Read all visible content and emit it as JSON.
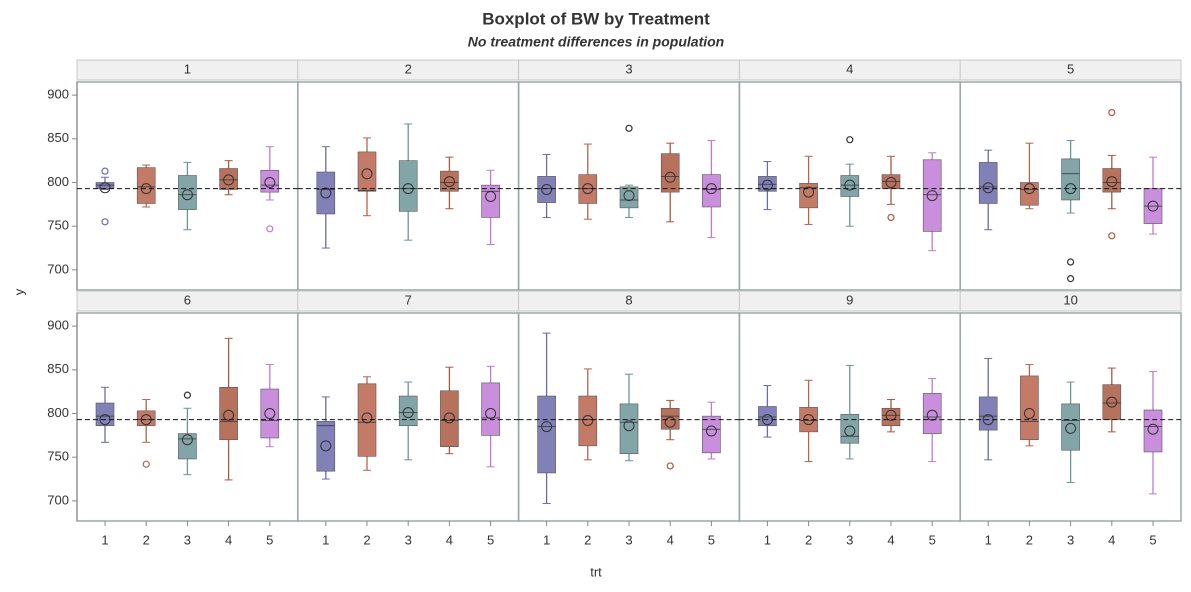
{
  "chart_data": {
    "type": "boxplot",
    "title": "Boxplot of BW by Treatment",
    "subtitle": "No treatment differences in population",
    "xlabel": "trt",
    "ylabel": "y",
    "ylim": [
      677,
      915
    ],
    "yticks": [
      700,
      750,
      800,
      850,
      900
    ],
    "reference_line": 793,
    "categories": [
      "1",
      "2",
      "3",
      "4",
      "5"
    ],
    "colors": [
      "#6b6bab",
      "#b8634c",
      "#6c9599",
      "#a9593f",
      "#c07ad6"
    ],
    "panels": [
      {
        "label": "1",
        "boxes": [
          {
            "min": 792,
            "q1": 793,
            "median": 797,
            "q3": 800,
            "max": 806,
            "mean": 794,
            "outliers": [
              813,
              755
            ]
          },
          {
            "min": 772,
            "q1": 776,
            "median": 795,
            "q3": 817,
            "max": 820,
            "mean": 793,
            "outliers": []
          },
          {
            "min": 746,
            "q1": 769,
            "median": 786,
            "q3": 808,
            "max": 823,
            "mean": 786,
            "outliers": []
          },
          {
            "min": 786,
            "q1": 792,
            "median": 803,
            "q3": 816,
            "max": 825,
            "mean": 803,
            "outliers": []
          },
          {
            "min": 780,
            "q1": 789,
            "median": 797,
            "q3": 814,
            "max": 841,
            "mean": 800,
            "outliers": [
              747
            ]
          }
        ]
      },
      {
        "label": "2",
        "boxes": [
          {
            "min": 725,
            "q1": 764,
            "median": 792,
            "q3": 812,
            "max": 841,
            "mean": 788,
            "outliers": []
          },
          {
            "min": 762,
            "q1": 790,
            "median": 791,
            "q3": 835,
            "max": 851,
            "mean": 810,
            "outliers": []
          },
          {
            "min": 734,
            "q1": 767,
            "median": 793,
            "q3": 825,
            "max": 867,
            "mean": 793,
            "outliers": []
          },
          {
            "min": 770,
            "q1": 790,
            "median": 800,
            "q3": 813,
            "max": 829,
            "mean": 801,
            "outliers": []
          },
          {
            "min": 729,
            "q1": 760,
            "median": 790,
            "q3": 797,
            "max": 814,
            "mean": 784,
            "outliers": []
          }
        ]
      },
      {
        "label": "3",
        "boxes": [
          {
            "min": 760,
            "q1": 777,
            "median": 793,
            "q3": 807,
            "max": 832,
            "mean": 792,
            "outliers": []
          },
          {
            "min": 758,
            "q1": 776,
            "median": 793,
            "q3": 809,
            "max": 844,
            "mean": 793,
            "outliers": []
          },
          {
            "min": 760,
            "q1": 771,
            "median": 780,
            "q3": 795,
            "max": 797,
            "mean": 785,
            "outliers": [
              862
            ]
          },
          {
            "min": 755,
            "q1": 789,
            "median": 807,
            "q3": 833,
            "max": 845,
            "mean": 806,
            "outliers": []
          },
          {
            "min": 737,
            "q1": 772,
            "median": 792,
            "q3": 809,
            "max": 848,
            "mean": 793,
            "outliers": []
          }
        ]
      },
      {
        "label": "4",
        "boxes": [
          {
            "min": 769,
            "q1": 790,
            "median": 798,
            "q3": 807,
            "max": 824,
            "mean": 797,
            "outliers": []
          },
          {
            "min": 752,
            "q1": 771,
            "median": 794,
            "q3": 799,
            "max": 830,
            "mean": 789,
            "outliers": []
          },
          {
            "min": 750,
            "q1": 784,
            "median": 797,
            "q3": 808,
            "max": 821,
            "mean": 797,
            "outliers": [
              849
            ]
          },
          {
            "min": 775,
            "q1": 793,
            "median": 801,
            "q3": 809,
            "max": 830,
            "mean": 800,
            "outliers": [
              760
            ]
          },
          {
            "min": 722,
            "q1": 744,
            "median": 786,
            "q3": 826,
            "max": 834,
            "mean": 785,
            "outliers": []
          }
        ]
      },
      {
        "label": "5",
        "boxes": [
          {
            "min": 746,
            "q1": 776,
            "median": 795,
            "q3": 823,
            "max": 837,
            "mean": 794,
            "outliers": []
          },
          {
            "min": 770,
            "q1": 774,
            "median": 792,
            "q3": 800,
            "max": 845,
            "mean": 793,
            "outliers": []
          },
          {
            "min": 765,
            "q1": 780,
            "median": 810,
            "q3": 827,
            "max": 848,
            "mean": 793,
            "outliers": [
              709,
              690
            ]
          },
          {
            "min": 770,
            "q1": 789,
            "median": 800,
            "q3": 816,
            "max": 831,
            "mean": 801,
            "outliers": [
              880,
              739
            ]
          },
          {
            "min": 741,
            "q1": 753,
            "median": 773,
            "q3": 793,
            "max": 829,
            "mean": 773,
            "outliers": []
          }
        ]
      },
      {
        "label": "6",
        "boxes": [
          {
            "min": 767,
            "q1": 786,
            "median": 797,
            "q3": 812,
            "max": 830,
            "mean": 793,
            "outliers": []
          },
          {
            "min": 767,
            "q1": 786,
            "median": 793,
            "q3": 803,
            "max": 816,
            "mean": 793,
            "outliers": [
              742
            ]
          },
          {
            "min": 730,
            "q1": 748,
            "median": 771,
            "q3": 777,
            "max": 806,
            "mean": 770,
            "outliers": [
              821
            ]
          },
          {
            "min": 724,
            "q1": 770,
            "median": 791,
            "q3": 830,
            "max": 886,
            "mean": 798,
            "outliers": []
          },
          {
            "min": 762,
            "q1": 772,
            "median": 792,
            "q3": 828,
            "max": 856,
            "mean": 800,
            "outliers": []
          }
        ]
      },
      {
        "label": "7",
        "boxes": [
          {
            "min": 725,
            "q1": 734,
            "median": 786,
            "q3": 791,
            "max": 819,
            "mean": 763,
            "outliers": []
          },
          {
            "min": 735,
            "q1": 751,
            "median": 790,
            "q3": 834,
            "max": 842,
            "mean": 795,
            "outliers": []
          },
          {
            "min": 747,
            "q1": 786,
            "median": 801,
            "q3": 820,
            "max": 836,
            "mean": 801,
            "outliers": []
          },
          {
            "min": 754,
            "q1": 762,
            "median": 792,
            "q3": 826,
            "max": 853,
            "mean": 795,
            "outliers": []
          },
          {
            "min": 739,
            "q1": 775,
            "median": 795,
            "q3": 835,
            "max": 854,
            "mean": 800,
            "outliers": []
          }
        ]
      },
      {
        "label": "8",
        "boxes": [
          {
            "min": 697,
            "q1": 732,
            "median": 785,
            "q3": 820,
            "max": 892,
            "mean": 785,
            "outliers": []
          },
          {
            "min": 747,
            "q1": 763,
            "median": 793,
            "q3": 820,
            "max": 851,
            "mean": 792,
            "outliers": []
          },
          {
            "min": 746,
            "q1": 754,
            "median": 790,
            "q3": 811,
            "max": 845,
            "mean": 786,
            "outliers": []
          },
          {
            "min": 770,
            "q1": 782,
            "median": 797,
            "q3": 806,
            "max": 815,
            "mean": 790,
            "outliers": [
              740
            ]
          },
          {
            "min": 748,
            "q1": 755,
            "median": 782,
            "q3": 797,
            "max": 813,
            "mean": 780,
            "outliers": []
          }
        ]
      },
      {
        "label": "9",
        "boxes": [
          {
            "min": 773,
            "q1": 786,
            "median": 796,
            "q3": 808,
            "max": 832,
            "mean": 793,
            "outliers": []
          },
          {
            "min": 745,
            "q1": 779,
            "median": 792,
            "q3": 807,
            "max": 838,
            "mean": 793,
            "outliers": []
          },
          {
            "min": 748,
            "q1": 766,
            "median": 774,
            "q3": 799,
            "max": 855,
            "mean": 780,
            "outliers": []
          },
          {
            "min": 779,
            "q1": 786,
            "median": 798,
            "q3": 806,
            "max": 816,
            "mean": 798,
            "outliers": []
          },
          {
            "min": 745,
            "q1": 777,
            "median": 796,
            "q3": 823,
            "max": 840,
            "mean": 798,
            "outliers": []
          }
        ]
      },
      {
        "label": "10",
        "boxes": [
          {
            "min": 747,
            "q1": 781,
            "median": 797,
            "q3": 819,
            "max": 863,
            "mean": 793,
            "outliers": []
          },
          {
            "min": 763,
            "q1": 770,
            "median": 791,
            "q3": 843,
            "max": 856,
            "mean": 800,
            "outliers": []
          },
          {
            "min": 721,
            "q1": 758,
            "median": 792,
            "q3": 811,
            "max": 836,
            "mean": 783,
            "outliers": []
          },
          {
            "min": 779,
            "q1": 793,
            "median": 812,
            "q3": 833,
            "max": 852,
            "mean": 813,
            "outliers": []
          },
          {
            "min": 708,
            "q1": 756,
            "median": 785,
            "q3": 804,
            "max": 848,
            "mean": 782,
            "outliers": []
          }
        ]
      }
    ]
  }
}
